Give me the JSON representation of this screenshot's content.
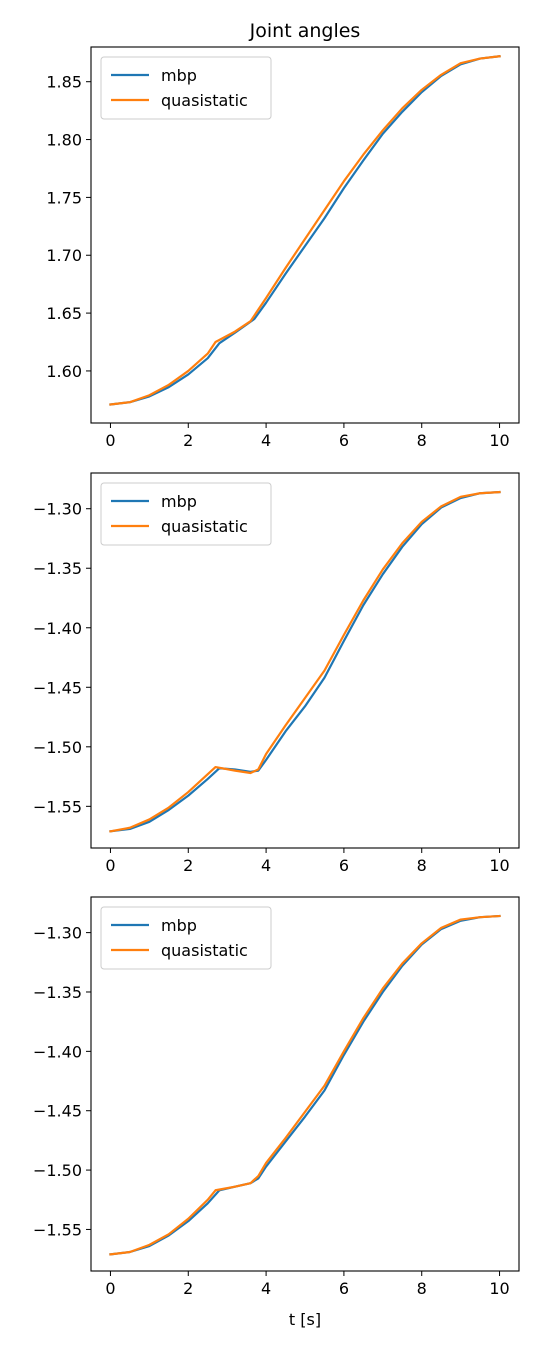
{
  "figure": {
    "title": "Joint angles",
    "xlabel": "t [s]"
  },
  "chart_data": [
    {
      "type": "line",
      "title": "Joint angles",
      "xlabel": "",
      "ylabel": "",
      "xlim": [
        -0.5,
        10.5
      ],
      "ylim": [
        1.555,
        1.88
      ],
      "xticks": [
        0,
        2,
        4,
        6,
        8,
        10
      ],
      "xtick_labels": [
        "0",
        "2",
        "4",
        "6",
        "8",
        "10"
      ],
      "yticks": [
        1.6,
        1.65,
        1.7,
        1.75,
        1.8,
        1.85
      ],
      "ytick_labels": [
        "1.60",
        "1.65",
        "1.70",
        "1.75",
        "1.80",
        "1.85"
      ],
      "grid": false,
      "legend": "top-left",
      "series": [
        {
          "name": "mbp",
          "color": "#1f77b4",
          "x": [
            0,
            0.5,
            1,
            1.5,
            2,
            2.5,
            2.8,
            3.2,
            3.7,
            4,
            4.5,
            5,
            5.5,
            6,
            6.5,
            7,
            7.5,
            8,
            8.5,
            9,
            9.5,
            10
          ],
          "y": [
            1.571,
            1.573,
            1.578,
            1.586,
            1.597,
            1.611,
            1.624,
            1.633,
            1.645,
            1.659,
            1.684,
            1.708,
            1.732,
            1.758,
            1.782,
            1.805,
            1.824,
            1.841,
            1.855,
            1.865,
            1.87,
            1.872
          ]
        },
        {
          "name": "quasistatic",
          "color": "#ff7f0e",
          "x": [
            0,
            0.5,
            1,
            1.5,
            2,
            2.5,
            2.7,
            3.2,
            3.6,
            4,
            4.5,
            5,
            5.5,
            6,
            6.5,
            7,
            7.5,
            8,
            8.5,
            9,
            9.5,
            10
          ],
          "y": [
            1.571,
            1.573,
            1.579,
            1.588,
            1.6,
            1.615,
            1.625,
            1.634,
            1.643,
            1.663,
            1.689,
            1.714,
            1.739,
            1.764,
            1.787,
            1.808,
            1.827,
            1.843,
            1.856,
            1.866,
            1.87,
            1.872
          ]
        }
      ]
    },
    {
      "type": "line",
      "title": "",
      "xlabel": "",
      "ylabel": "",
      "xlim": [
        -0.5,
        10.5
      ],
      "ylim": [
        -1.585,
        -1.27
      ],
      "xticks": [
        0,
        2,
        4,
        6,
        8,
        10
      ],
      "xtick_labels": [
        "0",
        "2",
        "4",
        "6",
        "8",
        "10"
      ],
      "yticks": [
        -1.55,
        -1.5,
        -1.45,
        -1.4,
        -1.35,
        -1.3
      ],
      "ytick_labels": [
        "−1.55",
        "−1.50",
        "−1.45",
        "−1.40",
        "−1.35",
        "−1.30"
      ],
      "grid": false,
      "legend": "top-left",
      "series": [
        {
          "name": "mbp",
          "color": "#1f77b4",
          "x": [
            0,
            0.5,
            1,
            1.5,
            2,
            2.5,
            2.8,
            3.2,
            3.6,
            3.8,
            4,
            4.5,
            5,
            5.5,
            6,
            6.5,
            7,
            7.5,
            8,
            8.5,
            9,
            9.5,
            10
          ],
          "y": [
            -1.571,
            -1.569,
            -1.563,
            -1.553,
            -1.541,
            -1.527,
            -1.518,
            -1.519,
            -1.521,
            -1.52,
            -1.511,
            -1.487,
            -1.466,
            -1.442,
            -1.411,
            -1.381,
            -1.355,
            -1.332,
            -1.313,
            -1.299,
            -1.291,
            -1.287,
            -1.286
          ]
        },
        {
          "name": "quasistatic",
          "color": "#ff7f0e",
          "x": [
            0,
            0.5,
            1,
            1.5,
            2,
            2.5,
            2.7,
            3.2,
            3.6,
            3.8,
            4,
            4.5,
            5,
            5.5,
            6,
            6.5,
            7,
            7.5,
            8,
            8.5,
            9,
            9.5,
            10
          ],
          "y": [
            -1.571,
            -1.568,
            -1.561,
            -1.551,
            -1.538,
            -1.523,
            -1.517,
            -1.52,
            -1.522,
            -1.519,
            -1.506,
            -1.482,
            -1.459,
            -1.436,
            -1.406,
            -1.377,
            -1.351,
            -1.329,
            -1.311,
            -1.298,
            -1.29,
            -1.287,
            -1.286
          ]
        }
      ]
    },
    {
      "type": "line",
      "title": "",
      "xlabel": "t [s]",
      "ylabel": "",
      "xlim": [
        -0.5,
        10.5
      ],
      "ylim": [
        -1.585,
        -1.27
      ],
      "xticks": [
        0,
        2,
        4,
        6,
        8,
        10
      ],
      "xtick_labels": [
        "0",
        "2",
        "4",
        "6",
        "8",
        "10"
      ],
      "yticks": [
        -1.55,
        -1.5,
        -1.45,
        -1.4,
        -1.35,
        -1.3
      ],
      "ytick_labels": [
        "−1.55",
        "−1.50",
        "−1.45",
        "−1.40",
        "−1.35",
        "−1.30"
      ],
      "grid": false,
      "legend": "top-left",
      "series": [
        {
          "name": "mbp",
          "color": "#1f77b4",
          "x": [
            0,
            0.5,
            1,
            1.5,
            2,
            2.5,
            2.8,
            3.2,
            3.6,
            3.8,
            4,
            4.5,
            5,
            5.5,
            6,
            6.5,
            7,
            7.5,
            8,
            8.5,
            9,
            9.5,
            10
          ],
          "y": [
            -1.571,
            -1.569,
            -1.564,
            -1.555,
            -1.543,
            -1.528,
            -1.517,
            -1.514,
            -1.511,
            -1.507,
            -1.497,
            -1.476,
            -1.455,
            -1.433,
            -1.403,
            -1.375,
            -1.35,
            -1.328,
            -1.31,
            -1.297,
            -1.29,
            -1.287,
            -1.286
          ]
        },
        {
          "name": "quasistatic",
          "color": "#ff7f0e",
          "x": [
            0,
            0.5,
            1,
            1.5,
            2,
            2.5,
            2.7,
            3.2,
            3.6,
            3.8,
            4,
            4.5,
            5,
            5.5,
            6,
            6.5,
            7,
            7.5,
            8,
            8.5,
            9,
            9.5,
            10
          ],
          "y": [
            -1.571,
            -1.569,
            -1.563,
            -1.554,
            -1.541,
            -1.525,
            -1.517,
            -1.514,
            -1.511,
            -1.505,
            -1.494,
            -1.473,
            -1.451,
            -1.429,
            -1.4,
            -1.372,
            -1.347,
            -1.326,
            -1.309,
            -1.296,
            -1.289,
            -1.287,
            -1.286
          ]
        }
      ]
    }
  ]
}
